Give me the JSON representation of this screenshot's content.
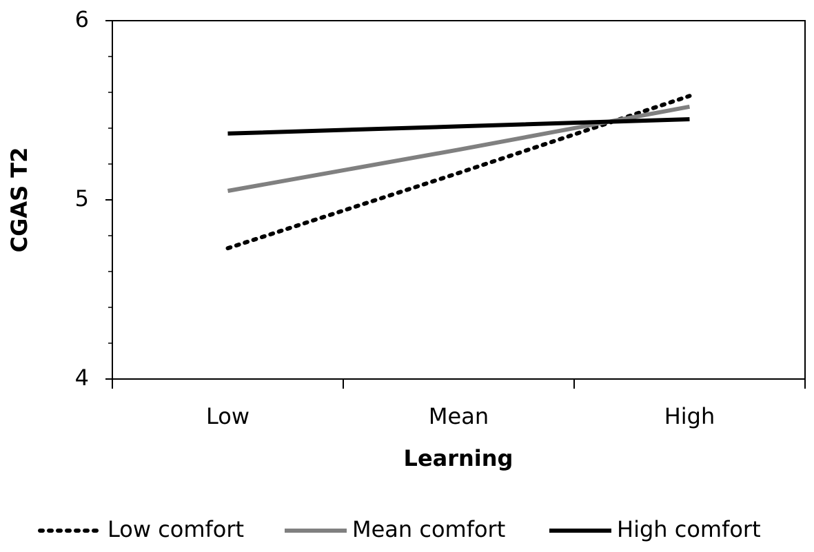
{
  "chart_data": {
    "type": "line",
    "x_label": "Learning",
    "y_label": "CGAS T2",
    "categories": [
      "Low",
      "Mean",
      "High"
    ],
    "series": [
      {
        "name": "Low comfort",
        "color": "#000000",
        "dash": "dotted",
        "values": [
          4.73,
          5.15,
          5.58
        ]
      },
      {
        "name": "Mean comfort",
        "color": "#808080",
        "dash": "solid",
        "values": [
          5.05,
          5.28,
          5.52
        ]
      },
      {
        "name": "High comfort",
        "color": "#000000",
        "dash": "solid",
        "values": [
          5.37,
          5.41,
          5.45
        ]
      }
    ],
    "ylim": [
      4,
      6
    ],
    "yticks": [
      4,
      5,
      6
    ],
    "yminor_ticks": [
      4.2,
      4.4,
      4.6,
      4.8,
      5.2,
      5.4,
      5.6,
      5.8
    ],
    "legend": "bottom"
  }
}
